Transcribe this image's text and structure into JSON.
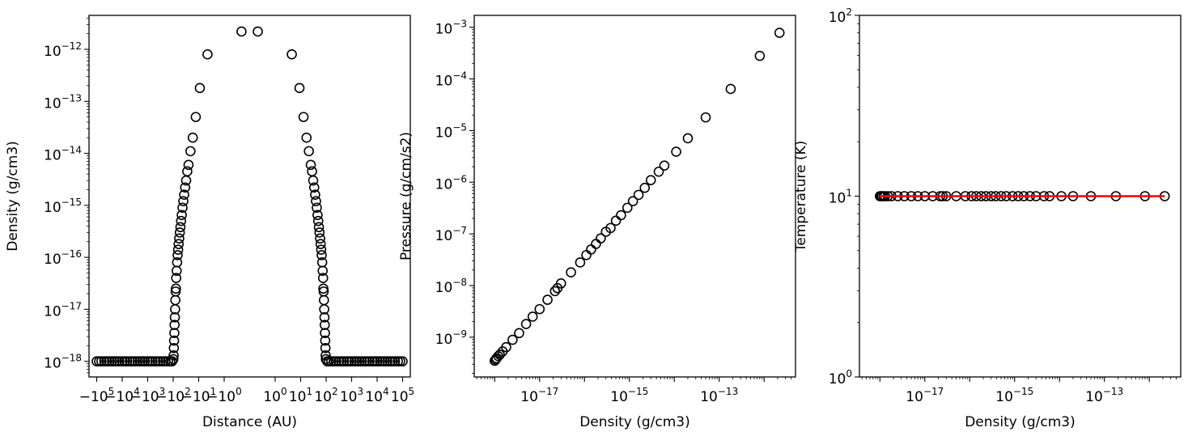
{
  "chart_data": [
    {
      "type": "scatter",
      "xlabel": "Distance (AU)",
      "ylabel": "Density (g/cm3)",
      "xscale": "symlog",
      "yscale": "log",
      "xlim": [
        -200000,
        200000
      ],
      "ylim": [
        5e-19,
        4.5e-12
      ],
      "xticks": [
        {
          "value": -100000,
          "label": "−10",
          "exp": "5"
        },
        {
          "value": -10000,
          "label": "−10",
          "exp": "4"
        },
        {
          "value": -1000,
          "label": "−10",
          "exp": "3"
        },
        {
          "value": -100,
          "label": "−10",
          "exp": "2"
        },
        {
          "value": -10,
          "label": "−10",
          "exp": "1"
        },
        {
          "value": -1,
          "label": "−10",
          "exp": "0"
        },
        {
          "value": 1,
          "label": "10",
          "exp": "0"
        },
        {
          "value": 10,
          "label": "10",
          "exp": "1"
        },
        {
          "value": 100,
          "label": "10",
          "exp": "2"
        },
        {
          "value": 1000,
          "label": "10",
          "exp": "3"
        },
        {
          "value": 10000,
          "label": "10",
          "exp": "4"
        },
        {
          "value": 100000,
          "label": "10",
          "exp": "5"
        }
      ],
      "yticks": [
        {
          "value": 1e-18,
          "label": "10",
          "exp": "−18"
        },
        {
          "value": 1e-17,
          "label": "10",
          "exp": "−17"
        },
        {
          "value": 1e-16,
          "label": "10",
          "exp": "−16"
        },
        {
          "value": 1e-15,
          "label": "10",
          "exp": "−15"
        },
        {
          "value": 1e-14,
          "label": "10",
          "exp": "−14"
        },
        {
          "value": 1e-13,
          "label": "10",
          "exp": "−13"
        },
        {
          "value": 1e-12,
          "label": "10",
          "exp": "−12"
        }
      ],
      "series": [
        {
          "marker": "open-circle",
          "color": "#000000",
          "points": [
            [
              0.32,
              2.2e-12
            ],
            [
              -0.32,
              2.2e-12
            ],
            [
              4.5,
              8e-13
            ],
            [
              -4.5,
              8e-13
            ],
            [
              9,
              1.8e-13
            ],
            [
              -9,
              1.8e-13
            ],
            [
              13,
              5e-14
            ],
            [
              -13,
              5e-14
            ],
            [
              17,
              2e-14
            ],
            [
              -17,
              2e-14
            ],
            [
              21,
              1.1e-14
            ],
            [
              -21,
              1.1e-14
            ],
            [
              25,
              6e-15
            ],
            [
              -25,
              6e-15
            ],
            [
              28,
              4.5e-15
            ],
            [
              -28,
              4.5e-15
            ],
            [
              31,
              3e-15
            ],
            [
              -31,
              3e-15
            ],
            [
              34,
              2.2e-15
            ],
            [
              -34,
              2.2e-15
            ],
            [
              37,
              1.6e-15
            ],
            [
              -37,
              1.6e-15
            ],
            [
              40,
              1.2e-15
            ],
            [
              -40,
              1.2e-15
            ],
            [
              43,
              9e-16
            ],
            [
              -43,
              9e-16
            ],
            [
              46,
              6.5e-16
            ],
            [
              -46,
              6.5e-16
            ],
            [
              49,
              5e-16
            ],
            [
              -49,
              5e-16
            ],
            [
              52,
              3.8e-16
            ],
            [
              -52,
              3.8e-16
            ],
            [
              55,
              3e-16
            ],
            [
              -55,
              3e-16
            ],
            [
              58,
              2.3e-16
            ],
            [
              -58,
              2.3e-16
            ],
            [
              61,
              1.8e-16
            ],
            [
              -61,
              1.8e-16
            ],
            [
              64,
              1.4e-16
            ],
            [
              -64,
              1.4e-16
            ],
            [
              67,
              1.1e-16
            ],
            [
              -67,
              1.1e-16
            ],
            [
              70,
              8e-17
            ],
            [
              -70,
              8e-17
            ],
            [
              73,
              5.5e-17
            ],
            [
              -73,
              5.5e-17
            ],
            [
              76,
              4e-17
            ],
            [
              -76,
              4e-17
            ],
            [
              78,
              2.5e-17
            ],
            [
              -78,
              2.5e-17
            ],
            [
              80,
              2.2e-17
            ],
            [
              -80,
              2.2e-17
            ],
            [
              82,
              1.5e-17
            ],
            [
              -82,
              1.5e-17
            ],
            [
              84,
              1e-17
            ],
            [
              -84,
              1e-17
            ],
            [
              86,
              7e-18
            ],
            [
              -86,
              7e-18
            ],
            [
              88,
              5e-18
            ],
            [
              -88,
              5e-18
            ],
            [
              90,
              3.5e-18
            ],
            [
              -90,
              3.5e-18
            ],
            [
              92,
              2.5e-18
            ],
            [
              -92,
              2.5e-18
            ],
            [
              94,
              1.8e-18
            ],
            [
              -94,
              1.8e-18
            ],
            [
              96,
              1.3e-18
            ],
            [
              -96,
              1.3e-18
            ],
            [
              98,
              1.1e-18
            ],
            [
              -98,
              1.1e-18
            ],
            [
              110,
              1e-18
            ],
            [
              -110,
              1e-18
            ],
            [
              130,
              1e-18
            ],
            [
              -130,
              1e-18
            ],
            [
              160,
              1e-18
            ],
            [
              -160,
              1e-18
            ],
            [
              200,
              1e-18
            ],
            [
              -200,
              1e-18
            ],
            [
              250,
              1e-18
            ],
            [
              -250,
              1e-18
            ],
            [
              320,
              1e-18
            ],
            [
              -320,
              1e-18
            ],
            [
              400,
              1e-18
            ],
            [
              -400,
              1e-18
            ],
            [
              500,
              1e-18
            ],
            [
              -500,
              1e-18
            ],
            [
              650,
              1e-18
            ],
            [
              -650,
              1e-18
            ],
            [
              800,
              1e-18
            ],
            [
              -800,
              1e-18
            ],
            [
              1000,
              1e-18
            ],
            [
              -1000,
              1e-18
            ],
            [
              1300,
              1e-18
            ],
            [
              -1300,
              1e-18
            ],
            [
              1600,
              1e-18
            ],
            [
              -1600,
              1e-18
            ],
            [
              2000,
              1e-18
            ],
            [
              -2000,
              1e-18
            ],
            [
              2500,
              1e-18
            ],
            [
              -2500,
              1e-18
            ],
            [
              3200,
              1e-18
            ],
            [
              -3200,
              1e-18
            ],
            [
              4000,
              1e-18
            ],
            [
              -4000,
              1e-18
            ],
            [
              5000,
              1e-18
            ],
            [
              -5000,
              1e-18
            ],
            [
              6500,
              1e-18
            ],
            [
              -6500,
              1e-18
            ],
            [
              8000,
              1e-18
            ],
            [
              -8000,
              1e-18
            ],
            [
              10000,
              1e-18
            ],
            [
              -10000,
              1e-18
            ],
            [
              13000,
              1e-18
            ],
            [
              -13000,
              1e-18
            ],
            [
              16000,
              1e-18
            ],
            [
              -16000,
              1e-18
            ],
            [
              20000,
              1e-18
            ],
            [
              -20000,
              1e-18
            ],
            [
              25000,
              1e-18
            ],
            [
              -25000,
              1e-18
            ],
            [
              32000,
              1e-18
            ],
            [
              -32000,
              1e-18
            ],
            [
              40000,
              1e-18
            ],
            [
              -40000,
              1e-18
            ],
            [
              50000,
              1e-18
            ],
            [
              -50000,
              1e-18
            ],
            [
              65000,
              1e-18
            ],
            [
              -65000,
              1e-18
            ],
            [
              80000,
              1e-18
            ],
            [
              -80000,
              1e-18
            ],
            [
              100000,
              1e-18
            ],
            [
              -100000,
              1e-18
            ]
          ]
        }
      ]
    },
    {
      "type": "scatter",
      "xlabel": "Density (g/cm3)",
      "ylabel": "Pressure (g/cm/s2)",
      "xscale": "log",
      "yscale": "log",
      "xlim": [
        3.5e-19,
        5e-12
      ],
      "ylim": [
        1.7e-10,
        0.0017
      ],
      "xticks": [
        {
          "value": 1e-17,
          "label": "10",
          "exp": "−17"
        },
        {
          "value": 1e-15,
          "label": "10",
          "exp": "−15"
        },
        {
          "value": 1e-13,
          "label": "10",
          "exp": "−13"
        }
      ],
      "yticks": [
        {
          "value": 1e-09,
          "label": "10",
          "exp": "−9"
        },
        {
          "value": 1e-08,
          "label": "10",
          "exp": "−8"
        },
        {
          "value": 1e-07,
          "label": "10",
          "exp": "−7"
        },
        {
          "value": 1e-06,
          "label": "10",
          "exp": "−6"
        },
        {
          "value": 1e-05,
          "label": "10",
          "exp": "−5"
        },
        {
          "value": 0.0001,
          "label": "10",
          "exp": "−4"
        },
        {
          "value": 0.001,
          "label": "10",
          "exp": "−3"
        }
      ],
      "series": [
        {
          "marker": "open-circle",
          "color": "#000000",
          "points": [
            [
              1e-18,
              3.5e-10
            ],
            [
              1.05e-18,
              3.7e-10
            ],
            [
              1.1e-18,
              3.9e-10
            ],
            [
              1.2e-18,
              4.3e-10
            ],
            [
              1.3e-18,
              4.6e-10
            ],
            [
              1.5e-18,
              5.3e-10
            ],
            [
              1.8e-18,
              6.4e-10
            ],
            [
              2.5e-18,
              8.9e-10
            ],
            [
              3.5e-18,
              1.2e-09
            ],
            [
              5e-18,
              1.8e-09
            ],
            [
              7e-18,
              2.5e-09
            ],
            [
              1e-17,
              3.5e-09
            ],
            [
              1.5e-17,
              5.3e-09
            ],
            [
              2.2e-17,
              7.8e-09
            ],
            [
              2.5e-17,
              8.9e-09
            ],
            [
              3e-17,
              1.1e-08
            ],
            [
              5e-17,
              1.8e-08
            ],
            [
              8e-17,
              2.8e-08
            ],
            [
              1.1e-16,
              3.9e-08
            ],
            [
              1.4e-16,
              5e-08
            ],
            [
              1.8e-16,
              6.4e-08
            ],
            [
              2.3e-16,
              8.2e-08
            ],
            [
              3e-16,
              1.1e-07
            ],
            [
              3.8e-16,
              1.3e-07
            ],
            [
              5e-16,
              1.8e-07
            ],
            [
              6.5e-16,
              2.3e-07
            ],
            [
              9e-16,
              3.2e-07
            ],
            [
              1.2e-15,
              4.3e-07
            ],
            [
              1.6e-15,
              5.7e-07
            ],
            [
              2.2e-15,
              7.8e-07
            ],
            [
              3e-15,
              1.1e-06
            ],
            [
              4.5e-15,
              1.6e-06
            ],
            [
              6e-15,
              2.1e-06
            ],
            [
              1.1e-14,
              3.9e-06
            ],
            [
              2e-14,
              7.1e-06
            ],
            [
              5e-14,
              1.8e-05
            ],
            [
              1.8e-13,
              6.4e-05
            ],
            [
              8e-13,
              0.00028
            ],
            [
              2.2e-12,
              0.00078
            ]
          ]
        }
      ]
    },
    {
      "type": "scatter",
      "xlabel": "Density (g/cm3)",
      "ylabel": "Temperature (K)",
      "xscale": "log",
      "yscale": "log",
      "xlim": [
        3.5e-19,
        5e-12
      ],
      "ylim": [
        1,
        100
      ],
      "xticks": [
        {
          "value": 1e-17,
          "label": "10",
          "exp": "−17"
        },
        {
          "value": 1e-15,
          "label": "10",
          "exp": "−15"
        },
        {
          "value": 1e-13,
          "label": "10",
          "exp": "−13"
        }
      ],
      "yticks": [
        {
          "value": 1,
          "label": "10",
          "exp": "0"
        },
        {
          "value": 10,
          "label": "10",
          "exp": "1"
        },
        {
          "value": 100,
          "label": "10",
          "exp": "2"
        }
      ],
      "series": [
        {
          "marker": "open-circle",
          "color": "#000000",
          "points": [
            [
              1e-18,
              10
            ],
            [
              1.05e-18,
              10
            ],
            [
              1.1e-18,
              10
            ],
            [
              1.2e-18,
              10
            ],
            [
              1.3e-18,
              10
            ],
            [
              1.5e-18,
              10
            ],
            [
              1.8e-18,
              10
            ],
            [
              2.5e-18,
              10
            ],
            [
              3.5e-18,
              10
            ],
            [
              5e-18,
              10
            ],
            [
              7e-18,
              10
            ],
            [
              1e-17,
              10
            ],
            [
              1.5e-17,
              10
            ],
            [
              2.2e-17,
              10
            ],
            [
              2.5e-17,
              10
            ],
            [
              3e-17,
              10
            ],
            [
              5e-17,
              10
            ],
            [
              8e-17,
              10
            ],
            [
              1.1e-16,
              10
            ],
            [
              1.4e-16,
              10
            ],
            [
              1.8e-16,
              10
            ],
            [
              2.3e-16,
              10
            ],
            [
              3e-16,
              10
            ],
            [
              3.8e-16,
              10
            ],
            [
              5e-16,
              10
            ],
            [
              6.5e-16,
              10
            ],
            [
              9e-16,
              10
            ],
            [
              1.2e-15,
              10
            ],
            [
              1.6e-15,
              10
            ],
            [
              2.2e-15,
              10
            ],
            [
              3e-15,
              10
            ],
            [
              4.5e-15,
              10
            ],
            [
              6e-15,
              10
            ],
            [
              1.1e-14,
              10
            ],
            [
              2e-14,
              10
            ],
            [
              5e-14,
              10
            ],
            [
              1.8e-13,
              10
            ],
            [
              8e-13,
              10
            ],
            [
              2.2e-12,
              10
            ]
          ]
        },
        {
          "marker": "line",
          "color": "#ff0000",
          "points": [
            [
              1e-18,
              10
            ],
            [
              2.2e-12,
              10
            ]
          ]
        }
      ]
    }
  ]
}
